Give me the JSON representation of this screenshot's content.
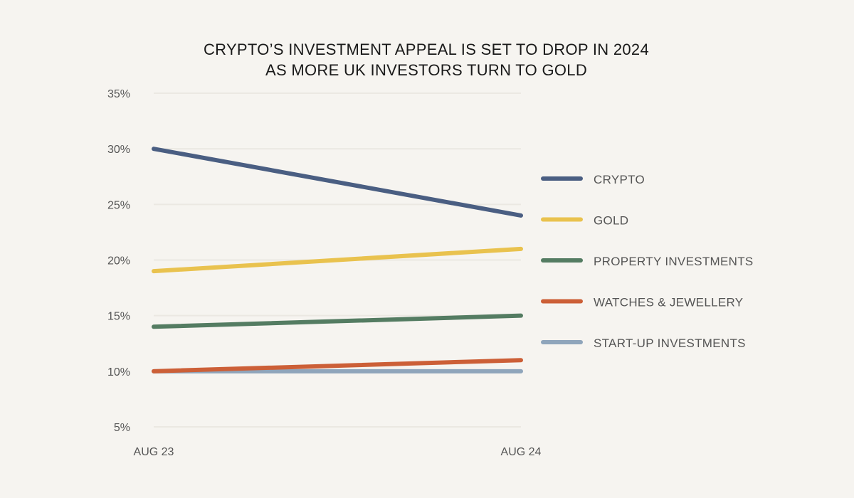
{
  "chart_data": {
    "type": "line",
    "title": [
      "CRYPTO’S INVESTMENT APPEAL IS SET TO DROP IN 2024",
      "AS MORE UK INVESTORS TURN TO GOLD"
    ],
    "xlabel": "",
    "ylabel": "",
    "x": [
      "AUG 23",
      "AUG 24"
    ],
    "ylim": [
      5,
      35
    ],
    "yticks": [
      5,
      10,
      15,
      20,
      25,
      30,
      35
    ],
    "ytick_labels": [
      "5%",
      "10%",
      "15%",
      "20%",
      "25%",
      "30%",
      "35%"
    ],
    "grid": true,
    "legend_position": "right",
    "series": [
      {
        "name": "CRYPTO",
        "color": "#4a5e82",
        "values": [
          30,
          24
        ]
      },
      {
        "name": "GOLD",
        "color": "#e9c24e",
        "values": [
          19,
          21
        ]
      },
      {
        "name": "PROPERTY INVESTMENTS",
        "color": "#547c62",
        "values": [
          14,
          15
        ]
      },
      {
        "name": "WATCHES & JEWELLERY",
        "color": "#cc5f37",
        "values": [
          10,
          11
        ]
      },
      {
        "name": "START-UP INVESTMENTS",
        "color": "#8fa5bb",
        "values": [
          10,
          10
        ]
      }
    ]
  }
}
